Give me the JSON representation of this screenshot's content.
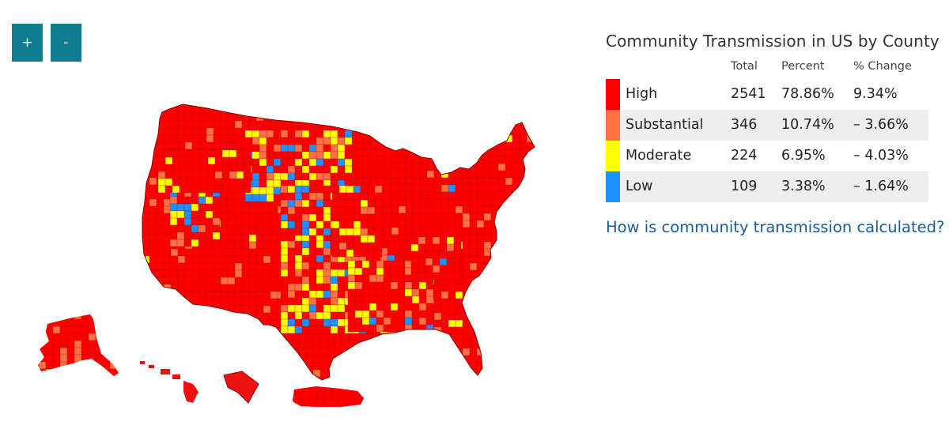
{
  "controls": {
    "zoom_in_label": "+",
    "zoom_out_label": "-"
  },
  "legend": {
    "title": "Community Transmission in US by County",
    "columns": {
      "total": "Total",
      "percent": "Percent",
      "change": "% Change"
    },
    "rows": [
      {
        "label": "High",
        "total": "2541",
        "percent": "78.86%",
        "change": "9.34%",
        "color": "#ff0000"
      },
      {
        "label": "Substantial",
        "total": "346",
        "percent": "10.74%",
        "change": "– 3.66%",
        "color": "#ff7043"
      },
      {
        "label": "Moderate",
        "total": "224",
        "percent": "6.95%",
        "change": "– 4.03%",
        "color": "#ffff00"
      },
      {
        "label": "Low",
        "total": "109",
        "percent": "3.38%",
        "change": "– 1.64%",
        "color": "#1e90ff"
      }
    ]
  },
  "link_text": "How is community transmission calculated?",
  "map": {
    "regions": [
      "Contiguous United States",
      "Alaska",
      "Hawaii",
      "Guam",
      "Puerto Rico"
    ],
    "dominant_level": "High"
  }
}
